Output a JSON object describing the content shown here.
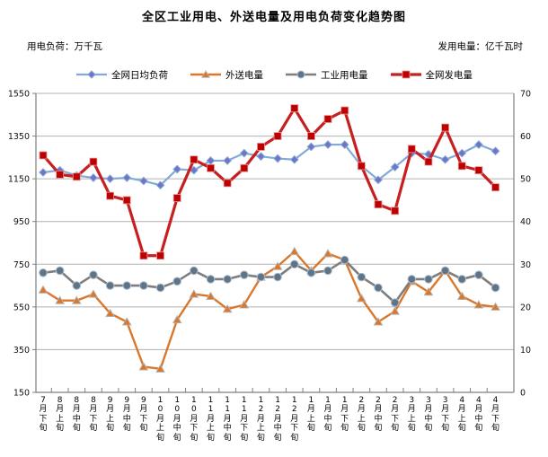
{
  "chart_data": {
    "type": "line",
    "title": "全区工业用电、外送电量及用电负荷变化趋势图",
    "ylabel_left": "用电负荷：万千瓦",
    "ylabel_right": "发用电量：亿千瓦时",
    "legend_position": "top",
    "grid": true,
    "grid_color": "#b0b0b0",
    "axis_color": "#7f7f7f",
    "text_color": "#111111",
    "left_axis": {
      "min": 150,
      "max": 1550,
      "ticks": [
        150,
        350,
        550,
        750,
        950,
        1150,
        1350,
        1550
      ]
    },
    "right_axis": {
      "min": 0,
      "max": 70,
      "ticks": [
        0,
        10,
        20,
        30,
        40,
        50,
        60,
        70
      ]
    },
    "categories": [
      "7月下旬",
      "8月上旬",
      "8月中旬",
      "8月下旬",
      "9月上旬",
      "9月中旬",
      "9月下旬",
      "10月上旬",
      "10月中旬",
      "10月下旬",
      "11月上旬",
      "11月中旬",
      "11月下旬",
      "12月上旬",
      "12月中旬",
      "12月下旬",
      "1月上旬",
      "1月中旬",
      "1月下旬",
      "2月上旬",
      "2月中旬",
      "2月下旬",
      "3月上旬",
      "3月中旬",
      "3月下旬",
      "4月上旬",
      "4月中旬",
      "4月下旬"
    ],
    "series": [
      {
        "name": "全网日均负荷",
        "axis": "left",
        "marker": "diamond",
        "line_color": "#82aad8",
        "marker_color": "#7273c4",
        "values": [
          1180,
          1190,
          1165,
          1155,
          1150,
          1155,
          1140,
          1120,
          1195,
          1190,
          1235,
          1235,
          1270,
          1255,
          1245,
          1240,
          1300,
          1310,
          1310,
          1210,
          1145,
          1205,
          1270,
          1265,
          1240,
          1270,
          1310,
          1280
        ]
      },
      {
        "name": "外送电量",
        "axis": "right",
        "marker": "triangle",
        "line_color": "#d9782d",
        "marker_color": "#d9782d",
        "values": [
          24,
          21.5,
          21.5,
          23,
          18.5,
          16.5,
          6,
          5.5,
          17,
          23,
          22.5,
          19.5,
          20.5,
          27,
          29.5,
          33,
          28.5,
          32.5,
          31,
          22,
          16.5,
          19,
          26,
          23.5,
          28.5,
          22.5,
          20.5,
          20
        ]
      },
      {
        "name": "工业用电量",
        "axis": "right",
        "marker": "circle",
        "line_color": "#7e7e7e",
        "marker_color": "#5f7587",
        "values": [
          28,
          28.5,
          25,
          27.5,
          25,
          25,
          25,
          24.5,
          26,
          28.5,
          26.5,
          26.5,
          27.5,
          27,
          27,
          30,
          28,
          28.5,
          31,
          27,
          24.5,
          21,
          26.5,
          26.5,
          28.5,
          26.5,
          27.5,
          24.5
        ]
      },
      {
        "name": "全网发电量",
        "axis": "right",
        "marker": "square",
        "line_color": "#c71f1f",
        "marker_color": "#c00000",
        "values": [
          55.5,
          51,
          50.5,
          54,
          46,
          45,
          32,
          32,
          45.5,
          54.5,
          52.5,
          49,
          52.5,
          57.5,
          60,
          66.5,
          60,
          64,
          66,
          53,
          44,
          42.5,
          57,
          54,
          62,
          53,
          52,
          48
        ]
      }
    ]
  }
}
